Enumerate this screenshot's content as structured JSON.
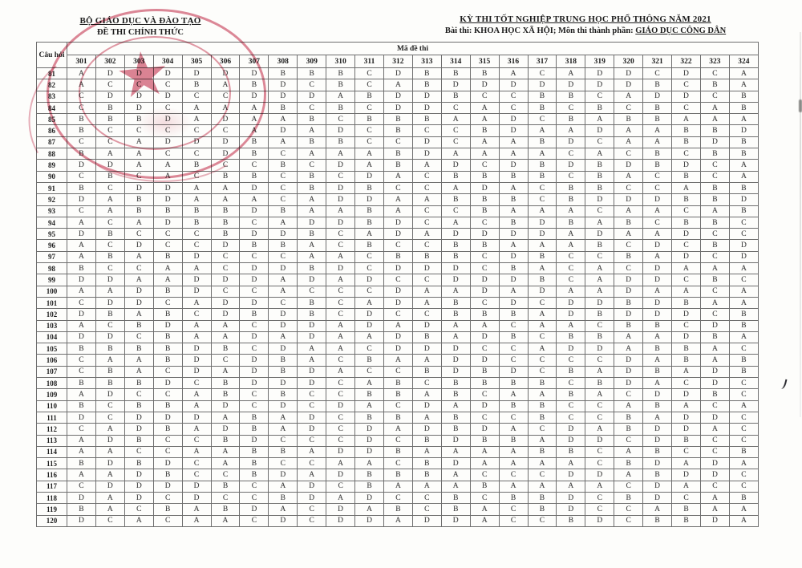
{
  "header": {
    "org": "BỘ GIÁO DỤC VÀ ĐÀO TẠO",
    "doc_type": "ĐỀ THI CHÍNH THỨC",
    "exam_title": "KỲ THI TỐT NGHIỆP TRUNG HỌC PHỔ THÔNG NĂM 2021",
    "exam_subtitle_prefix": "Bài thi:  KHOA HỌC XÃ HỘI; Môn thi thành phần: ",
    "exam_subject": "GIÁO DỤC CÔNG DÂN"
  },
  "stamp": {
    "color": "#c63954"
  },
  "table": {
    "question_col_header": "Câu hỏi",
    "code_group_header": "Mã đề thi",
    "codes": [
      "301",
      "302",
      "303",
      "304",
      "305",
      "306",
      "307",
      "308",
      "309",
      "310",
      "311",
      "312",
      "313",
      "314",
      "315",
      "316",
      "317",
      "318",
      "319",
      "320",
      "321",
      "322",
      "323",
      "324"
    ],
    "rows": [
      {
        "q": "81",
        "answers": [
          "A",
          "D",
          "D",
          "D",
          "D",
          "D",
          "D",
          "B",
          "B",
          "B",
          "C",
          "D",
          "B",
          "B",
          "B",
          "A",
          "C",
          "A",
          "D",
          "D",
          "C",
          "D",
          "C",
          "A"
        ]
      },
      {
        "q": "82",
        "answers": [
          "A",
          "C",
          "C",
          "C",
          "B",
          "A",
          "B",
          "D",
          "C",
          "B",
          "C",
          "A",
          "B",
          "D",
          "D",
          "D",
          "D",
          "D",
          "D",
          "D",
          "B",
          "C",
          "B",
          "A"
        ]
      },
      {
        "q": "83",
        "answers": [
          "C",
          "D",
          "D",
          "D",
          "C",
          "C",
          "D",
          "D",
          "D",
          "A",
          "B",
          "D",
          "D",
          "B",
          "C",
          "C",
          "B",
          "B",
          "C",
          "A",
          "D",
          "D",
          "C",
          "B"
        ]
      },
      {
        "q": "84",
        "answers": [
          "C",
          "B",
          "D",
          "C",
          "A",
          "A",
          "A",
          "B",
          "C",
          "B",
          "C",
          "D",
          "D",
          "C",
          "A",
          "C",
          "B",
          "C",
          "B",
          "C",
          "B",
          "C",
          "A",
          "B"
        ]
      },
      {
        "q": "85",
        "answers": [
          "B",
          "B",
          "B",
          "D",
          "A",
          "D",
          "A",
          "A",
          "B",
          "C",
          "B",
          "B",
          "B",
          "A",
          "A",
          "D",
          "C",
          "B",
          "A",
          "B",
          "B",
          "A",
          "A",
          "A"
        ]
      },
      {
        "q": "86",
        "answers": [
          "B",
          "C",
          "C",
          "C",
          "C",
          "C",
          "A",
          "D",
          "A",
          "D",
          "C",
          "B",
          "C",
          "C",
          "B",
          "D",
          "A",
          "A",
          "D",
          "A",
          "A",
          "B",
          "B",
          "D"
        ]
      },
      {
        "q": "87",
        "answers": [
          "C",
          "C",
          "A",
          "D",
          "D",
          "D",
          "B",
          "A",
          "B",
          "B",
          "C",
          "C",
          "D",
          "C",
          "A",
          "A",
          "B",
          "D",
          "C",
          "A",
          "A",
          "B",
          "D",
          "B"
        ]
      },
      {
        "q": "88",
        "answers": [
          "B",
          "A",
          "A",
          "C",
          "C",
          "D",
          "B",
          "C",
          "A",
          "A",
          "A",
          "B",
          "D",
          "A",
          "A",
          "A",
          "A",
          "C",
          "A",
          "C",
          "B",
          "C",
          "B",
          "B"
        ]
      },
      {
        "q": "89",
        "answers": [
          "D",
          "D",
          "A",
          "A",
          "B",
          "C",
          "C",
          "B",
          "C",
          "D",
          "A",
          "B",
          "A",
          "D",
          "C",
          "D",
          "B",
          "D",
          "B",
          "D",
          "B",
          "D",
          "C",
          "A"
        ]
      },
      {
        "q": "90",
        "answers": [
          "C",
          "B",
          "C",
          "A",
          "C",
          "B",
          "B",
          "C",
          "B",
          "C",
          "D",
          "A",
          "C",
          "B",
          "B",
          "B",
          "B",
          "C",
          "B",
          "A",
          "C",
          "B",
          "C",
          "A"
        ]
      },
      {
        "q": "91",
        "answers": [
          "B",
          "C",
          "D",
          "D",
          "A",
          "A",
          "D",
          "C",
          "B",
          "D",
          "B",
          "C",
          "C",
          "A",
          "D",
          "A",
          "C",
          "B",
          "B",
          "C",
          "C",
          "A",
          "B",
          "B"
        ]
      },
      {
        "q": "92",
        "answers": [
          "D",
          "A",
          "B",
          "D",
          "A",
          "A",
          "A",
          "C",
          "A",
          "D",
          "D",
          "A",
          "A",
          "B",
          "B",
          "B",
          "C",
          "B",
          "D",
          "D",
          "D",
          "B",
          "B",
          "D"
        ]
      },
      {
        "q": "93",
        "answers": [
          "C",
          "A",
          "B",
          "B",
          "B",
          "B",
          "D",
          "B",
          "A",
          "A",
          "B",
          "A",
          "C",
          "C",
          "B",
          "A",
          "A",
          "A",
          "C",
          "A",
          "A",
          "C",
          "A",
          "B"
        ]
      },
      {
        "q": "94",
        "answers": [
          "A",
          "C",
          "A",
          "D",
          "B",
          "B",
          "C",
          "A",
          "D",
          "D",
          "B",
          "D",
          "C",
          "A",
          "C",
          "B",
          "D",
          "B",
          "A",
          "B",
          "C",
          "B",
          "B",
          "C"
        ]
      },
      {
        "q": "95",
        "answers": [
          "D",
          "B",
          "C",
          "C",
          "C",
          "B",
          "D",
          "D",
          "B",
          "C",
          "A",
          "D",
          "A",
          "D",
          "D",
          "D",
          "D",
          "A",
          "D",
          "A",
          "A",
          "D",
          "C",
          "C"
        ]
      },
      {
        "q": "96",
        "answers": [
          "A",
          "C",
          "D",
          "C",
          "C",
          "D",
          "B",
          "B",
          "A",
          "C",
          "B",
          "C",
          "C",
          "B",
          "B",
          "A",
          "A",
          "A",
          "B",
          "C",
          "D",
          "C",
          "B",
          "D"
        ]
      },
      {
        "q": "97",
        "answers": [
          "A",
          "B",
          "A",
          "B",
          "D",
          "C",
          "C",
          "C",
          "A",
          "A",
          "C",
          "B",
          "B",
          "B",
          "C",
          "D",
          "B",
          "C",
          "C",
          "B",
          "A",
          "D",
          "C",
          "D"
        ]
      },
      {
        "q": "98",
        "answers": [
          "B",
          "C",
          "C",
          "A",
          "A",
          "C",
          "D",
          "D",
          "B",
          "D",
          "C",
          "D",
          "D",
          "D",
          "C",
          "B",
          "A",
          "C",
          "A",
          "C",
          "D",
          "A",
          "A",
          "A"
        ]
      },
      {
        "q": "99",
        "answers": [
          "D",
          "D",
          "A",
          "A",
          "D",
          "D",
          "D",
          "A",
          "D",
          "A",
          "D",
          "C",
          "C",
          "D",
          "D",
          "D",
          "B",
          "C",
          "A",
          "D",
          "D",
          "C",
          "B",
          "C"
        ]
      },
      {
        "q": "100",
        "answers": [
          "A",
          "A",
          "D",
          "B",
          "D",
          "C",
          "C",
          "A",
          "C",
          "C",
          "C",
          "D",
          "A",
          "A",
          "D",
          "A",
          "D",
          "A",
          "A",
          "D",
          "A",
          "A",
          "C",
          "A"
        ]
      },
      {
        "q": "101",
        "answers": [
          "C",
          "D",
          "D",
          "C",
          "A",
          "D",
          "D",
          "C",
          "B",
          "C",
          "A",
          "D",
          "A",
          "B",
          "C",
          "D",
          "C",
          "D",
          "D",
          "B",
          "D",
          "B",
          "A",
          "A"
        ]
      },
      {
        "q": "102",
        "answers": [
          "D",
          "B",
          "A",
          "B",
          "C",
          "D",
          "B",
          "D",
          "B",
          "C",
          "D",
          "C",
          "C",
          "B",
          "B",
          "B",
          "A",
          "D",
          "B",
          "D",
          "D",
          "D",
          "C",
          "B"
        ]
      },
      {
        "q": "103",
        "answers": [
          "A",
          "C",
          "B",
          "D",
          "A",
          "A",
          "C",
          "D",
          "D",
          "A",
          "D",
          "A",
          "D",
          "A",
          "A",
          "C",
          "A",
          "A",
          "C",
          "B",
          "B",
          "C",
          "D",
          "B"
        ]
      },
      {
        "q": "104",
        "answers": [
          "D",
          "D",
          "C",
          "B",
          "A",
          "A",
          "D",
          "A",
          "D",
          "A",
          "A",
          "D",
          "B",
          "A",
          "D",
          "B",
          "C",
          "B",
          "B",
          "A",
          "A",
          "D",
          "B",
          "A"
        ]
      },
      {
        "q": "105",
        "answers": [
          "B",
          "B",
          "B",
          "B",
          "D",
          "B",
          "C",
          "D",
          "A",
          "A",
          "C",
          "D",
          "D",
          "D",
          "C",
          "C",
          "A",
          "D",
          "D",
          "A",
          "B",
          "B",
          "A",
          "C"
        ]
      },
      {
        "q": "106",
        "answers": [
          "C",
          "A",
          "A",
          "B",
          "D",
          "C",
          "D",
          "B",
          "A",
          "C",
          "B",
          "A",
          "A",
          "D",
          "D",
          "C",
          "C",
          "C",
          "C",
          "D",
          "A",
          "B",
          "A",
          "B"
        ]
      },
      {
        "q": "107",
        "answers": [
          "C",
          "B",
          "A",
          "C",
          "D",
          "A",
          "D",
          "B",
          "D",
          "A",
          "C",
          "C",
          "B",
          "D",
          "B",
          "D",
          "C",
          "B",
          "A",
          "D",
          "B",
          "A",
          "D",
          "B"
        ]
      },
      {
        "q": "108",
        "answers": [
          "B",
          "B",
          "B",
          "D",
          "C",
          "B",
          "D",
          "D",
          "D",
          "C",
          "A",
          "B",
          "C",
          "B",
          "B",
          "B",
          "B",
          "C",
          "B",
          "D",
          "A",
          "C",
          "D",
          "C"
        ]
      },
      {
        "q": "109",
        "answers": [
          "A",
          "D",
          "C",
          "C",
          "A",
          "B",
          "C",
          "B",
          "C",
          "C",
          "B",
          "B",
          "A",
          "B",
          "C",
          "A",
          "A",
          "B",
          "A",
          "C",
          "D",
          "D",
          "B",
          "C"
        ]
      },
      {
        "q": "110",
        "answers": [
          "B",
          "C",
          "B",
          "B",
          "A",
          "D",
          "C",
          "D",
          "C",
          "D",
          "A",
          "C",
          "D",
          "A",
          "D",
          "B",
          "B",
          "C",
          "C",
          "A",
          "B",
          "A",
          "C",
          "A"
        ]
      },
      {
        "q": "111",
        "answers": [
          "D",
          "C",
          "D",
          "D",
          "D",
          "A",
          "B",
          "A",
          "D",
          "C",
          "B",
          "B",
          "A",
          "B",
          "C",
          "C",
          "B",
          "C",
          "C",
          "B",
          "A",
          "D",
          "D",
          "C"
        ]
      },
      {
        "q": "112",
        "answers": [
          "C",
          "A",
          "D",
          "B",
          "A",
          "D",
          "B",
          "A",
          "D",
          "C",
          "D",
          "A",
          "D",
          "B",
          "D",
          "A",
          "C",
          "D",
          "A",
          "B",
          "D",
          "D",
          "A",
          "C"
        ]
      },
      {
        "q": "113",
        "answers": [
          "A",
          "D",
          "B",
          "C",
          "C",
          "B",
          "D",
          "C",
          "C",
          "C",
          "D",
          "C",
          "B",
          "D",
          "B",
          "B",
          "A",
          "D",
          "D",
          "C",
          "D",
          "B",
          "C",
          "C"
        ]
      },
      {
        "q": "114",
        "answers": [
          "A",
          "A",
          "C",
          "C",
          "A",
          "A",
          "B",
          "B",
          "A",
          "D",
          "D",
          "B",
          "A",
          "A",
          "A",
          "A",
          "B",
          "B",
          "C",
          "A",
          "B",
          "C",
          "C",
          "B"
        ]
      },
      {
        "q": "115",
        "answers": [
          "B",
          "D",
          "B",
          "D",
          "C",
          "A",
          "B",
          "C",
          "C",
          "A",
          "A",
          "C",
          "B",
          "D",
          "A",
          "A",
          "A",
          "A",
          "C",
          "B",
          "D",
          "A",
          "D",
          "A"
        ]
      },
      {
        "q": "116",
        "answers": [
          "A",
          "A",
          "D",
          "B",
          "C",
          "C",
          "B",
          "D",
          "A",
          "D",
          "B",
          "B",
          "B",
          "A",
          "C",
          "C",
          "C",
          "D",
          "D",
          "A",
          "B",
          "D",
          "D",
          "C"
        ]
      },
      {
        "q": "117",
        "answers": [
          "C",
          "D",
          "D",
          "D",
          "D",
          "B",
          "C",
          "A",
          "D",
          "C",
          "B",
          "A",
          "A",
          "A",
          "B",
          "A",
          "A",
          "A",
          "A",
          "C",
          "D",
          "A",
          "C",
          "C"
        ]
      },
      {
        "q": "118",
        "answers": [
          "D",
          "A",
          "D",
          "C",
          "D",
          "C",
          "C",
          "B",
          "D",
          "A",
          "D",
          "C",
          "C",
          "B",
          "C",
          "B",
          "B",
          "D",
          "C",
          "B",
          "D",
          "C",
          "A",
          "B"
        ]
      },
      {
        "q": "119",
        "answers": [
          "B",
          "A",
          "C",
          "B",
          "A",
          "B",
          "D",
          "A",
          "C",
          "D",
          "A",
          "B",
          "C",
          "B",
          "A",
          "C",
          "B",
          "D",
          "C",
          "C",
          "A",
          "B",
          "A",
          "A"
        ]
      },
      {
        "q": "120",
        "answers": [
          "D",
          "C",
          "A",
          "C",
          "A",
          "A",
          "C",
          "D",
          "C",
          "D",
          "D",
          "A",
          "D",
          "D",
          "A",
          "C",
          "C",
          "B",
          "D",
          "C",
          "B",
          "B",
          "D",
          "A"
        ]
      }
    ]
  }
}
